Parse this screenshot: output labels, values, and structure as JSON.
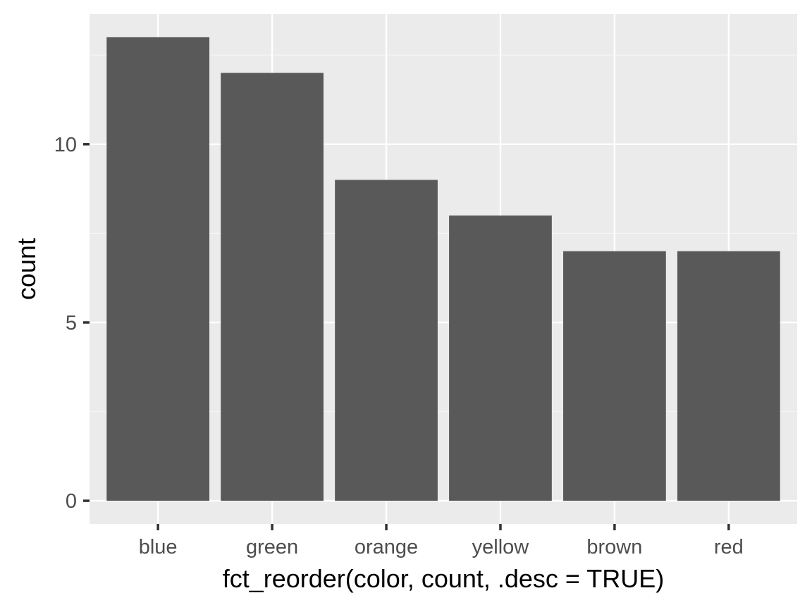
{
  "chart_data": {
    "type": "bar",
    "categories": [
      "blue",
      "green",
      "orange",
      "yellow",
      "brown",
      "red"
    ],
    "values": [
      13,
      12,
      9,
      8,
      7,
      7
    ],
    "title": "",
    "xlabel": "fct_reorder(color, count, .desc = TRUE)",
    "ylabel": "count",
    "ylim": [
      -0.65,
      13.65
    ],
    "yticks": [
      0,
      5,
      10
    ],
    "ytick_labels": [
      "0",
      "5",
      "10"
    ],
    "grid": true,
    "legend": "none"
  },
  "colors": {
    "panel_background": "#ebebeb",
    "grid_major": "#ffffff",
    "grid_minor": "#f5f5f5",
    "bar_fill": "#595959",
    "tick_mark": "#333333",
    "tick_label": "#4d4d4d",
    "axis_title": "#000000"
  }
}
